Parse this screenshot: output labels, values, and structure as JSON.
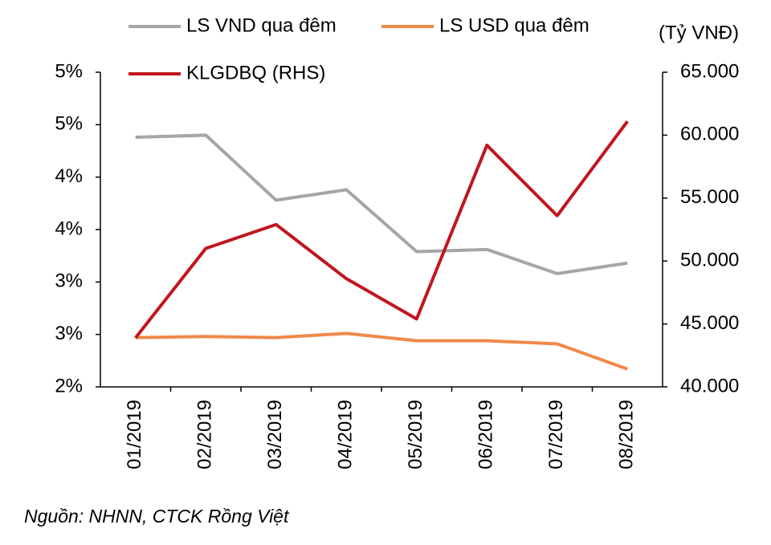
{
  "chart_data": {
    "type": "line",
    "categories": [
      "01/2019",
      "02/2019",
      "03/2019",
      "04/2019",
      "05/2019",
      "06/2019",
      "07/2019",
      "08/2019"
    ],
    "series": [
      {
        "name": "LS VND qua đêm",
        "color": "#a6a6a6",
        "values": [
          4.38,
          4.4,
          3.78,
          3.88,
          3.29,
          3.31,
          3.08,
          3.18
        ]
      },
      {
        "name": "LS USD qua đêm",
        "color": "#f0894a",
        "values": [
          2.47,
          2.48,
          2.47,
          2.51,
          2.44,
          2.44,
          2.41,
          2.17
        ]
      },
      {
        "name": "KLGDBQ (RHS)",
        "color": "#c0161f",
        "axis": "y2",
        "values": [
          43900,
          51000,
          52900,
          48600,
          45400,
          59200,
          53600,
          61100
        ]
      }
    ],
    "ylim": [
      2,
      5
    ],
    "yticks": [
      {
        "value": 2,
        "label": "2%"
      },
      {
        "value": 2.5,
        "label": "3%"
      },
      {
        "value": 3,
        "label": "3%"
      },
      {
        "value": 3.5,
        "label": "4%"
      },
      {
        "value": 4,
        "label": "4%"
      },
      {
        "value": 4.5,
        "label": "5%"
      },
      {
        "value": 5,
        "label": "5%"
      }
    ],
    "y2lim": [
      40000,
      65000
    ],
    "y2ticks": [
      {
        "value": 40000,
        "label": "40.000"
      },
      {
        "value": 45000,
        "label": "45.000"
      },
      {
        "value": 50000,
        "label": "50.000"
      },
      {
        "value": 55000,
        "label": "55.000"
      },
      {
        "value": 60000,
        "label": "60.000"
      },
      {
        "value": 65000,
        "label": "65.000"
      }
    ],
    "y2label": "(Tỷ VNĐ)",
    "note": "Nguồn: NHNN, CTCK Rồng Việt"
  }
}
